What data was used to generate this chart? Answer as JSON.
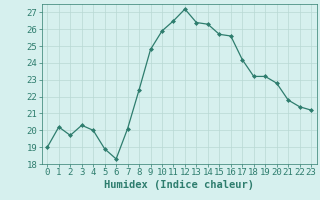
{
  "x": [
    0,
    1,
    2,
    3,
    4,
    5,
    6,
    7,
    8,
    9,
    10,
    11,
    12,
    13,
    14,
    15,
    16,
    17,
    18,
    19,
    20,
    21,
    22,
    23
  ],
  "y": [
    19.0,
    20.2,
    19.7,
    20.3,
    20.0,
    18.9,
    18.3,
    20.1,
    22.4,
    24.8,
    25.9,
    26.5,
    27.2,
    26.4,
    26.3,
    25.7,
    25.6,
    24.2,
    23.2,
    23.2,
    22.8,
    21.8,
    21.4,
    21.2
  ],
  "line_color": "#2e7d6e",
  "marker": "D",
  "marker_size": 2.0,
  "bg_color": "#d6f0ee",
  "grid_color": "#b8d8d4",
  "xlabel": "Humidex (Indice chaleur)",
  "ylim": [
    18,
    27.5
  ],
  "xlim": [
    -0.5,
    23.5
  ],
  "yticks": [
    18,
    19,
    20,
    21,
    22,
    23,
    24,
    25,
    26,
    27
  ],
  "xticks": [
    0,
    1,
    2,
    3,
    4,
    5,
    6,
    7,
    8,
    9,
    10,
    11,
    12,
    13,
    14,
    15,
    16,
    17,
    18,
    19,
    20,
    21,
    22,
    23
  ],
  "tick_label_fontsize": 6.5,
  "xlabel_fontsize": 7.5,
  "tick_color": "#2e7d6e",
  "label_color": "#2e7d6e",
  "linewidth": 0.9
}
